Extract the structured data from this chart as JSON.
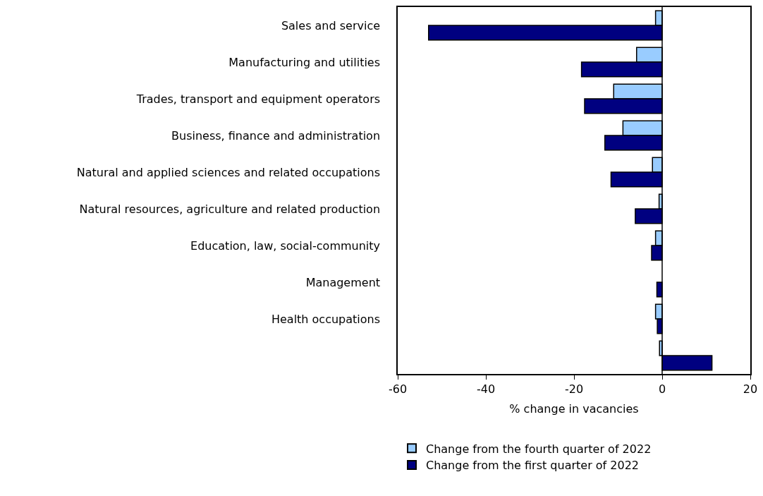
{
  "chart_data": {
    "type": "bar",
    "orientation": "horizontal",
    "xlabel": "% change in vacancies",
    "categories": [
      "Sales and service",
      "Manufacturing and utilities",
      "Trades, transport and equipment operators",
      "Business, finance and administration",
      "Natural and applied sciences and related occupations",
      "Natural resources, agriculture and related production",
      "Education, law, social-community",
      "Management",
      "Health occupations",
      null
    ],
    "series": [
      {
        "name": "Change from the fourth quarter of 2022",
        "color": "#99ccff",
        "values": [
          -1.5,
          -5.8,
          -11.0,
          -8.9,
          -2.2,
          -0.7,
          -1.5,
          null,
          -1.5,
          -0.6
        ]
      },
      {
        "name": "Change from the first quarter of 2022",
        "color": "#000080",
        "values": [
          -53.0,
          -18.3,
          -17.6,
          -13.0,
          -11.6,
          -6.1,
          -2.4,
          -1.2,
          -1.1,
          11.3
        ]
      }
    ],
    "xlim": [
      -60,
      20
    ],
    "xticks": [
      -60,
      -40,
      -20,
      0,
      20
    ],
    "ref_lines": [
      {
        "axis": "x",
        "value": 0,
        "color": "#000000"
      }
    ],
    "legend": "bottom"
  }
}
